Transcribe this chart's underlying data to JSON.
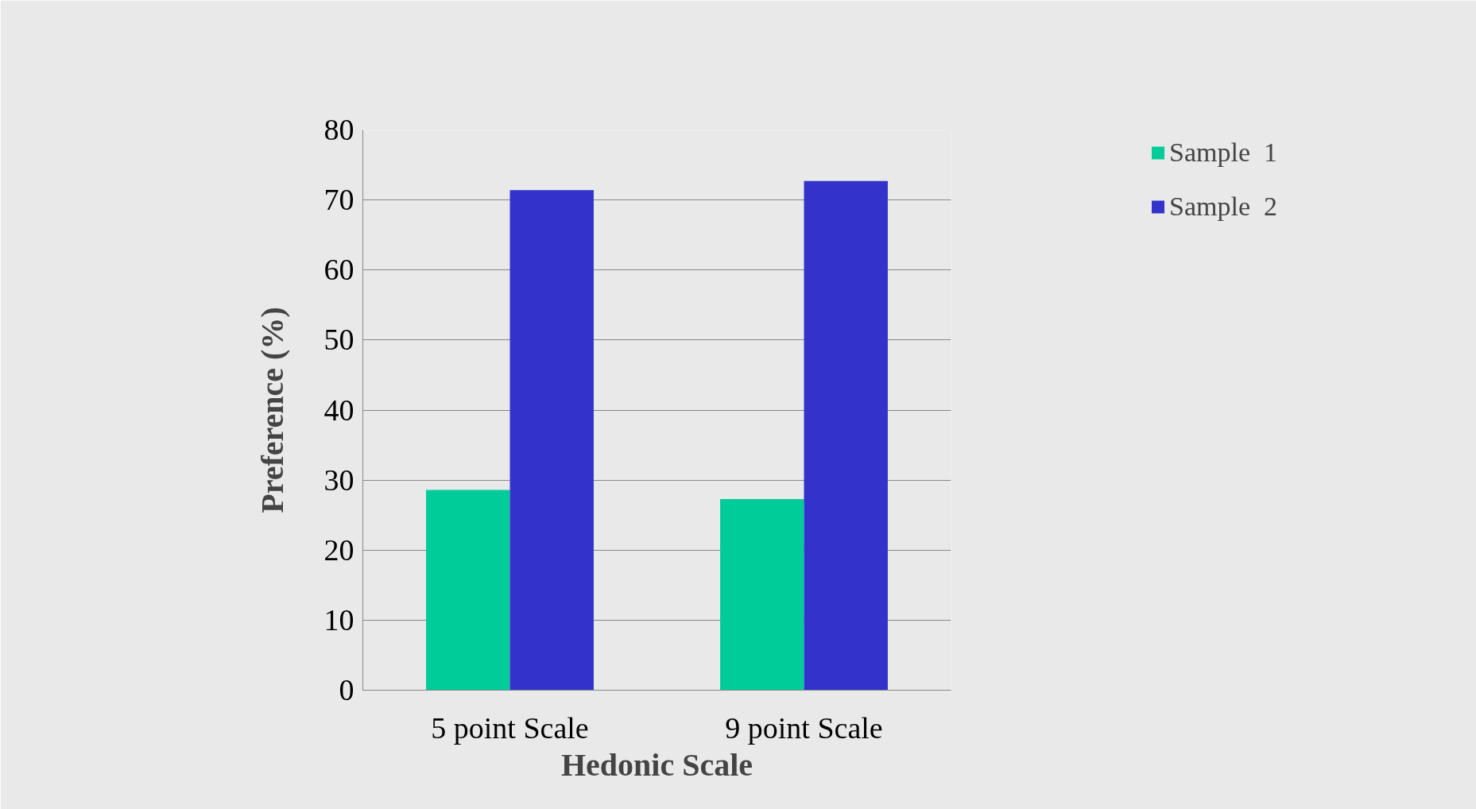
{
  "chart_data": {
    "type": "bar",
    "xlabel": "Hedonic Scale",
    "ylabel": "Preference (%)",
    "categories": [
      "5 point Scale",
      "9 point Scale"
    ],
    "series": [
      {
        "name": "Sample  1",
        "color": "#00cc99",
        "values": [
          28.6,
          27.3
        ]
      },
      {
        "name": "Sample  2",
        "color": "#3333cc",
        "values": [
          71.4,
          72.7
        ]
      }
    ],
    "ylim": [
      0,
      80
    ],
    "yticks": [
      0,
      10,
      20,
      30,
      40,
      50,
      60,
      70,
      80
    ],
    "grid": "y",
    "legend": "right"
  }
}
